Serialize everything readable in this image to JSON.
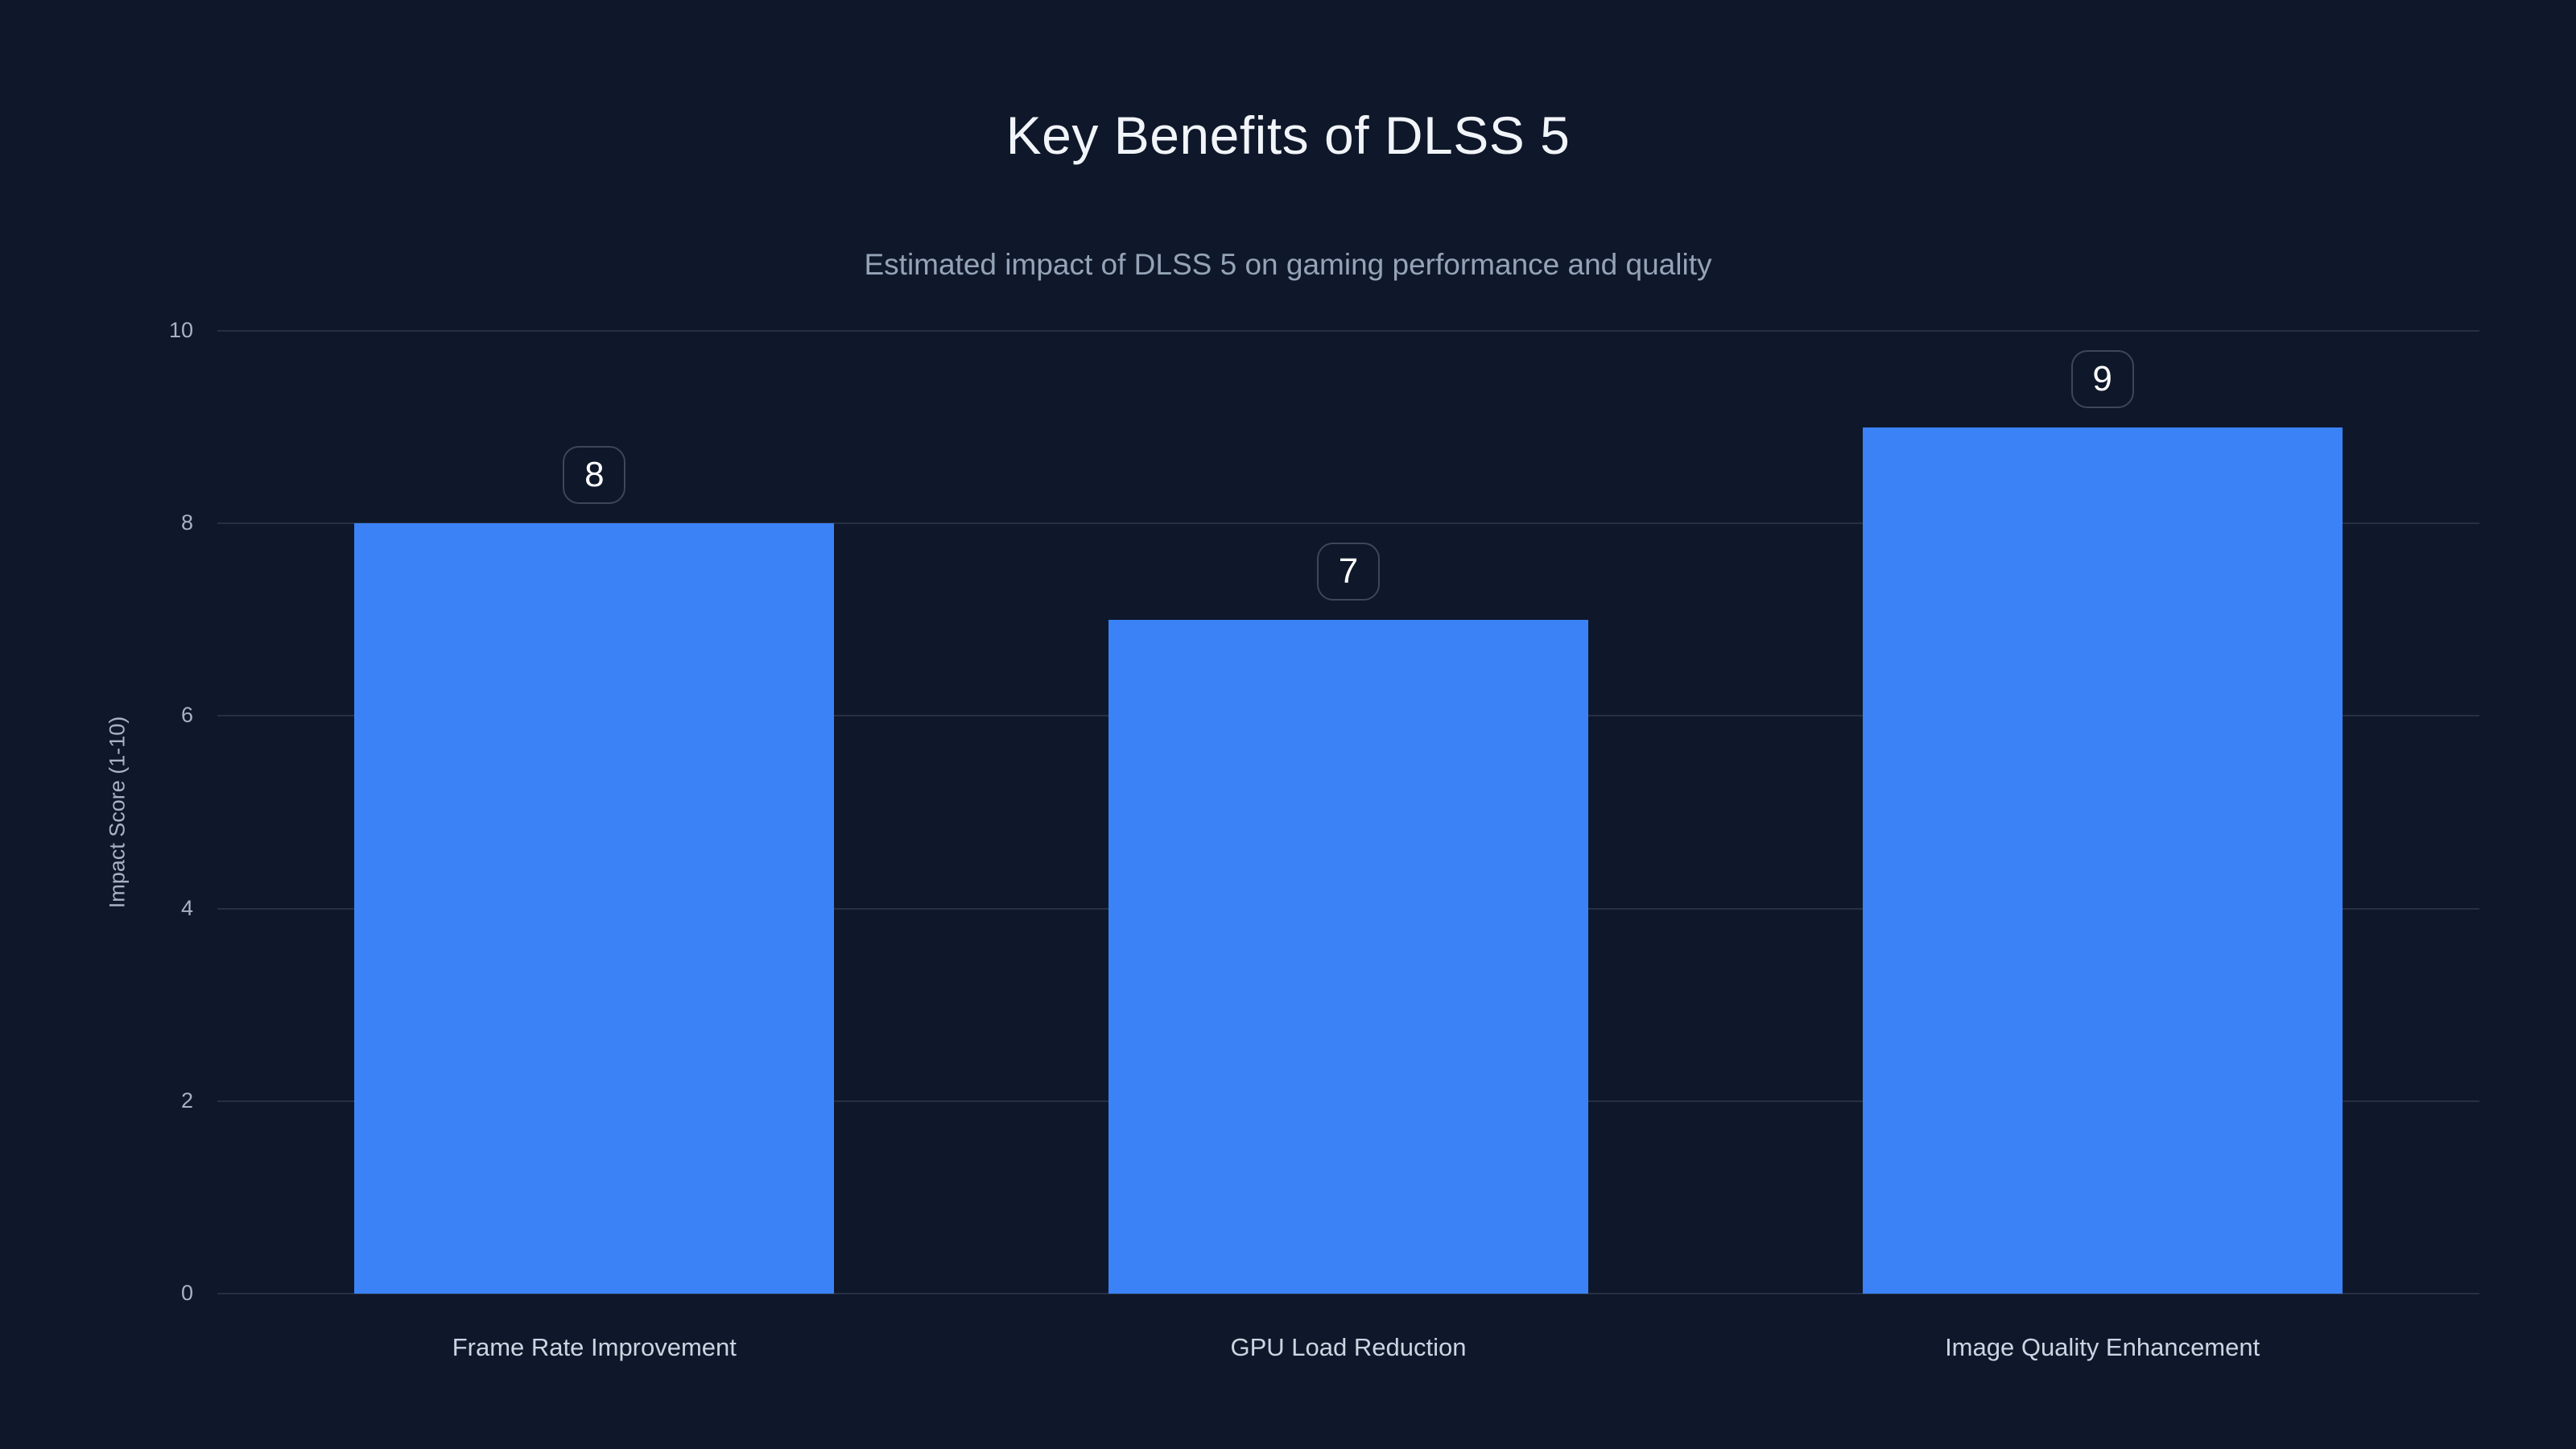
{
  "page": {
    "title": "Key Benefits of DLSS 5",
    "subtitle": "Estimated impact of DLSS 5 on gaming performance and quality"
  },
  "chart_data": {
    "type": "bar",
    "title": "Key Benefits of DLSS 5",
    "subtitle": "Estimated impact of DLSS 5 on gaming performance and quality",
    "categories": [
      "Frame Rate Improvement",
      "GPU Load Reduction",
      "Image Quality Enhancement"
    ],
    "values": [
      8,
      7,
      9
    ],
    "data_labels": [
      "8",
      "7",
      "9"
    ],
    "xlabel": "",
    "ylabel": "Impact Score (1-10)",
    "ylim": [
      0,
      10
    ],
    "yticks": [
      0,
      2,
      4,
      6,
      8,
      10
    ],
    "grid": true,
    "legend": false,
    "orientation": "vertical"
  },
  "colors": {
    "background": "#0f172a",
    "bar": "#3b82f6",
    "grid": "#273043",
    "title": "#f1f5f9",
    "subtitle": "#94a3b8",
    "tick": "#a7b3c4",
    "category": "#cbd5e1",
    "value_label_text": "#ffffff",
    "value_label_border": "#3d4759"
  }
}
